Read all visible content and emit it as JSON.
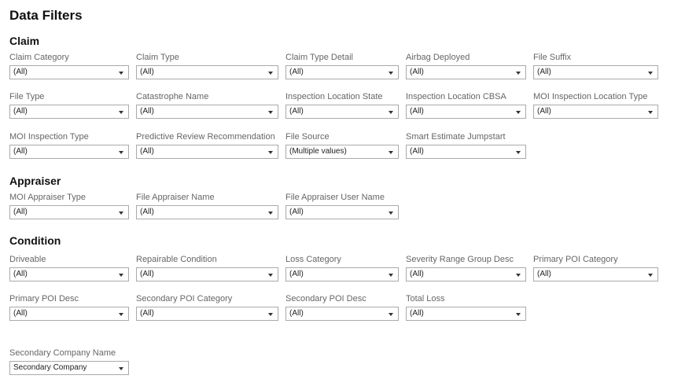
{
  "title": "Data Filters",
  "sections": [
    {
      "heading": "Claim",
      "rows": [
        [
          {
            "label": "Claim Category",
            "value": "(All)"
          },
          {
            "label": "Claim Type",
            "value": "(All)"
          },
          {
            "label": "Claim Type Detail",
            "value": "(All)"
          },
          {
            "label": "Airbag Deployed",
            "value": "(All)"
          },
          {
            "label": "File Suffix",
            "value": "(All)"
          }
        ],
        [
          {
            "label": "File Type",
            "value": "(All)"
          },
          {
            "label": "Catastrophe Name",
            "value": "(All)"
          },
          {
            "label": "Inspection Location State",
            "value": "(All)"
          },
          {
            "label": "Inspection Location CBSA",
            "value": "(All)"
          },
          {
            "label": "MOI Inspection Location Type",
            "value": "(All)"
          }
        ],
        [
          {
            "label": "MOI Inspection Type",
            "value": "(All)"
          },
          {
            "label": "Predictive Review Recommendation",
            "value": "(All)"
          },
          {
            "label": "File Source",
            "value": "(Multiple values)"
          },
          {
            "label": "Smart Estimate Jumpstart",
            "value": "(All)"
          }
        ]
      ]
    },
    {
      "heading": "Appraiser",
      "rows": [
        [
          {
            "label": "MOI Appraiser Type",
            "value": "(All)"
          },
          {
            "label": "File Appraiser Name",
            "value": "(All)"
          },
          {
            "label": "File Appraiser User Name",
            "value": "(All)"
          }
        ]
      ]
    },
    {
      "heading": "Condition",
      "rows": [
        [
          {
            "label": "Driveable",
            "value": "(All)"
          },
          {
            "label": "Repairable Condition",
            "value": "(All)"
          },
          {
            "label": "Loss Category",
            "value": "(All)"
          },
          {
            "label": "Severity Range Group Desc",
            "value": "(All)"
          },
          {
            "label": "Primary POI Category",
            "value": "(All)"
          }
        ],
        [
          {
            "label": "Primary POI Desc",
            "value": "(All)"
          },
          {
            "label": "Secondary POI Category",
            "value": "(All)"
          },
          {
            "label": "Secondary POI Desc",
            "value": "(All)"
          },
          {
            "label": "Total Loss",
            "value": "(All)"
          }
        ],
        [
          {
            "label": "Secondary Company Name",
            "value": "Secondary Company"
          }
        ]
      ]
    }
  ]
}
